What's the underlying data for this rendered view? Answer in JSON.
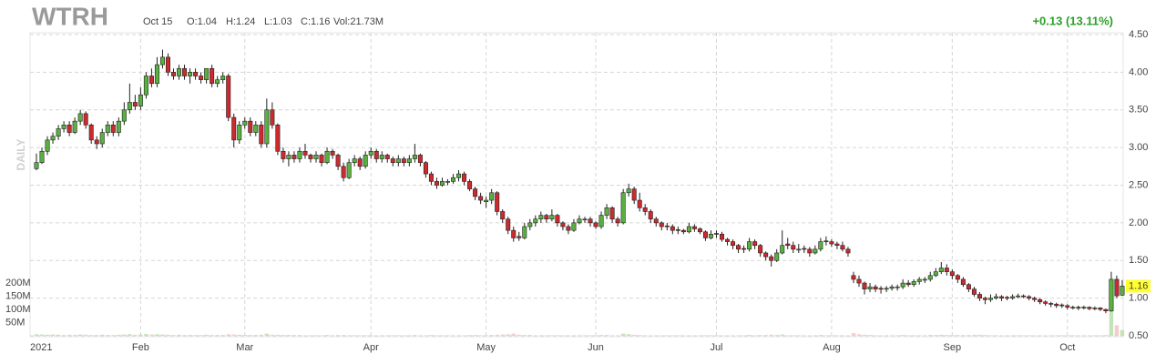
{
  "chart_data": {
    "type": "candlestick",
    "header": {
      "ticker": "WTRH",
      "date": "Oct 15",
      "open": "O:1.04",
      "high": "H:1.24",
      "low": "L:1.03",
      "close": "C:1.16",
      "volume": "Vol:21.73M",
      "change": "+0.13 (13.11%)",
      "period": "DAILY"
    },
    "up_color": "#59b13f",
    "down_color": "#cc2a2e",
    "volume_up_color": "#c3e3b8",
    "volume_down_color": "#f5cccc",
    "grid": true,
    "ylim": [
      0.5,
      4.5
    ],
    "yticks": [
      {
        "value": 0.5,
        "label": "0.50"
      },
      {
        "value": 1,
        "label": "1.00"
      },
      {
        "value": 1.5,
        "label": "1.50"
      },
      {
        "value": 2,
        "label": "2.00"
      },
      {
        "value": 2.5,
        "label": "2.50"
      },
      {
        "value": 3,
        "label": "3.00"
      },
      {
        "value": 3.5,
        "label": "3.50"
      },
      {
        "value": 4,
        "label": "4.00"
      },
      {
        "value": 4.5,
        "label": "4.50"
      }
    ],
    "price_tag": {
      "value": 1.16,
      "label": "1.16"
    },
    "vlim": [
      0,
      200
    ],
    "vticks": [
      {
        "value": 50,
        "label": "50M"
      },
      {
        "value": 100,
        "label": "100M"
      },
      {
        "value": 150,
        "label": "150M"
      },
      {
        "value": 200,
        "label": "200M"
      }
    ],
    "months": [
      {
        "index": 0,
        "label": "2021"
      },
      {
        "index": 19,
        "label": "Feb"
      },
      {
        "index": 38,
        "label": "Mar"
      },
      {
        "index": 61,
        "label": "Apr"
      },
      {
        "index": 82,
        "label": "May"
      },
      {
        "index": 102,
        "label": "Jun"
      },
      {
        "index": 124,
        "label": "Jul"
      },
      {
        "index": 145,
        "label": "Aug"
      },
      {
        "index": 167,
        "label": "Sep"
      },
      {
        "index": 188,
        "label": "Oct"
      }
    ],
    "ohlc": [
      [
        2.72,
        2.92,
        2.7,
        2.8
      ],
      [
        2.8,
        3.0,
        2.78,
        2.95
      ],
      [
        2.95,
        3.15,
        2.9,
        3.1
      ],
      [
        3.1,
        3.2,
        3.05,
        3.15
      ],
      [
        3.15,
        3.3,
        3.1,
        3.25
      ],
      [
        3.25,
        3.35,
        3.2,
        3.3
      ],
      [
        3.3,
        3.35,
        3.15,
        3.2
      ],
      [
        3.2,
        3.4,
        3.18,
        3.35
      ],
      [
        3.35,
        3.5,
        3.3,
        3.45
      ],
      [
        3.45,
        3.48,
        3.25,
        3.3
      ],
      [
        3.3,
        3.32,
        3.05,
        3.1
      ],
      [
        3.1,
        3.15,
        2.98,
        3.05
      ],
      [
        3.05,
        3.25,
        3.0,
        3.2
      ],
      [
        3.2,
        3.35,
        3.15,
        3.3
      ],
      [
        3.3,
        3.35,
        3.15,
        3.2
      ],
      [
        3.2,
        3.4,
        3.15,
        3.35
      ],
      [
        3.35,
        3.6,
        3.3,
        3.5
      ],
      [
        3.5,
        3.85,
        3.45,
        3.6
      ],
      [
        3.6,
        3.7,
        3.5,
        3.55
      ],
      [
        3.55,
        3.8,
        3.5,
        3.7
      ],
      [
        3.7,
        4.0,
        3.65,
        3.95
      ],
      [
        3.95,
        4.05,
        3.8,
        3.85
      ],
      [
        3.85,
        4.2,
        3.8,
        4.1
      ],
      [
        4.1,
        4.3,
        4.05,
        4.2
      ],
      [
        4.2,
        4.25,
        3.95,
        4.0
      ],
      [
        4.0,
        4.05,
        3.9,
        3.95
      ],
      [
        3.95,
        4.1,
        3.9,
        4.05
      ],
      [
        4.05,
        4.1,
        3.9,
        3.95
      ],
      [
        3.95,
        4.05,
        3.85,
        4.0
      ],
      [
        4.0,
        4.05,
        3.9,
        3.95
      ],
      [
        3.95,
        4.0,
        3.85,
        3.9
      ],
      [
        3.9,
        4.05,
        3.85,
        4.05
      ],
      [
        4.05,
        4.1,
        3.8,
        3.85
      ],
      [
        3.85,
        3.95,
        3.8,
        3.9
      ],
      [
        3.9,
        4.0,
        3.85,
        3.95
      ],
      [
        3.95,
        3.98,
        3.35,
        3.4
      ],
      [
        3.4,
        3.45,
        3.0,
        3.1
      ],
      [
        3.1,
        3.35,
        3.05,
        3.3
      ],
      [
        3.3,
        3.4,
        3.25,
        3.35
      ],
      [
        3.35,
        3.4,
        3.15,
        3.2
      ],
      [
        3.2,
        3.35,
        3.15,
        3.3
      ],
      [
        3.3,
        3.35,
        3.0,
        3.05
      ],
      [
        3.05,
        3.65,
        3.0,
        3.5
      ],
      [
        3.5,
        3.6,
        3.25,
        3.3
      ],
      [
        3.3,
        3.32,
        2.9,
        2.95
      ],
      [
        2.95,
        3.0,
        2.8,
        2.85
      ],
      [
        2.85,
        2.95,
        2.75,
        2.9
      ],
      [
        2.9,
        2.95,
        2.8,
        2.85
      ],
      [
        2.85,
        3.0,
        2.8,
        2.95
      ],
      [
        2.95,
        3.05,
        2.85,
        2.9
      ],
      [
        2.9,
        2.92,
        2.8,
        2.85
      ],
      [
        2.85,
        2.95,
        2.8,
        2.9
      ],
      [
        2.9,
        2.92,
        2.75,
        2.8
      ],
      [
        2.8,
        3.0,
        2.78,
        2.95
      ],
      [
        2.95,
        2.98,
        2.85,
        2.9
      ],
      [
        2.9,
        2.92,
        2.7,
        2.75
      ],
      [
        2.75,
        2.8,
        2.55,
        2.6
      ],
      [
        2.6,
        2.85,
        2.58,
        2.8
      ],
      [
        2.8,
        2.9,
        2.75,
        2.85
      ],
      [
        2.85,
        2.88,
        2.7,
        2.75
      ],
      [
        2.75,
        2.95,
        2.72,
        2.9
      ],
      [
        2.9,
        3.0,
        2.85,
        2.95
      ],
      [
        2.95,
        2.98,
        2.8,
        2.85
      ],
      [
        2.85,
        2.95,
        2.8,
        2.9
      ],
      [
        2.9,
        2.92,
        2.8,
        2.85
      ],
      [
        2.85,
        2.88,
        2.75,
        2.8
      ],
      [
        2.8,
        2.9,
        2.75,
        2.85
      ],
      [
        2.85,
        2.88,
        2.75,
        2.8
      ],
      [
        2.8,
        2.9,
        2.75,
        2.85
      ],
      [
        2.85,
        3.05,
        2.8,
        2.9
      ],
      [
        2.9,
        2.92,
        2.75,
        2.8
      ],
      [
        2.8,
        2.82,
        2.6,
        2.65
      ],
      [
        2.65,
        2.68,
        2.5,
        2.55
      ],
      [
        2.55,
        2.6,
        2.45,
        2.5
      ],
      [
        2.5,
        2.6,
        2.48,
        2.55
      ],
      [
        2.55,
        2.58,
        2.5,
        2.55
      ],
      [
        2.55,
        2.65,
        2.52,
        2.6
      ],
      [
        2.6,
        2.7,
        2.55,
        2.65
      ],
      [
        2.65,
        2.68,
        2.5,
        2.55
      ],
      [
        2.55,
        2.58,
        2.42,
        2.45
      ],
      [
        2.45,
        2.48,
        2.3,
        2.35
      ],
      [
        2.35,
        2.4,
        2.25,
        2.3
      ],
      [
        2.28,
        2.35,
        2.2,
        2.3
      ],
      [
        2.3,
        2.45,
        2.25,
        2.4
      ],
      [
        2.4,
        2.42,
        2.1,
        2.15
      ],
      [
        2.15,
        2.18,
        2.0,
        2.05
      ],
      [
        2.05,
        2.08,
        1.85,
        1.9
      ],
      [
        1.9,
        1.95,
        1.75,
        1.8
      ],
      [
        1.82,
        1.88,
        1.76,
        1.8
      ],
      [
        1.8,
        2.0,
        1.78,
        1.95
      ],
      [
        1.95,
        2.05,
        1.9,
        2.0
      ],
      [
        2.0,
        2.1,
        1.95,
        2.05
      ],
      [
        2.05,
        2.15,
        2.0,
        2.1
      ],
      [
        2.1,
        2.12,
        2.0,
        2.05
      ],
      [
        2.05,
        2.18,
        2.02,
        2.1
      ],
      [
        2.1,
        2.12,
        1.95,
        2.0
      ],
      [
        2.0,
        2.02,
        1.9,
        1.95
      ],
      [
        1.95,
        1.98,
        1.85,
        1.9
      ],
      [
        1.9,
        2.05,
        1.88,
        2.0
      ],
      [
        2.0,
        2.1,
        1.98,
        2.05
      ],
      [
        2.04,
        2.08,
        2.0,
        2.05
      ],
      [
        2.05,
        2.08,
        1.95,
        2.0
      ],
      [
        2.0,
        2.02,
        1.92,
        1.95
      ],
      [
        1.95,
        2.15,
        1.92,
        2.1
      ],
      [
        2.1,
        2.25,
        2.05,
        2.2
      ],
      [
        2.2,
        2.22,
        2.0,
        2.05
      ],
      [
        2.05,
        2.08,
        1.95,
        2.0
      ],
      [
        2.0,
        2.45,
        1.98,
        2.4
      ],
      [
        2.4,
        2.52,
        2.35,
        2.45
      ],
      [
        2.45,
        2.48,
        2.25,
        2.3
      ],
      [
        2.3,
        2.4,
        2.15,
        2.2
      ],
      [
        2.2,
        2.25,
        2.1,
        2.15
      ],
      [
        2.15,
        2.18,
        2.0,
        2.05
      ],
      [
        2.05,
        2.08,
        1.95,
        2.0
      ],
      [
        2.0,
        2.02,
        1.9,
        1.95
      ],
      [
        1.96,
        2.0,
        1.9,
        1.95
      ],
      [
        1.95,
        1.98,
        1.85,
        1.9
      ],
      [
        1.91,
        1.95,
        1.85,
        1.9
      ],
      [
        1.9,
        1.92,
        1.85,
        1.88
      ],
      [
        1.88,
        2.0,
        1.86,
        1.95
      ],
      [
        1.95,
        1.98,
        1.88,
        1.92
      ],
      [
        1.92,
        1.94,
        1.85,
        1.88
      ],
      [
        1.88,
        1.9,
        1.76,
        1.8
      ],
      [
        1.8,
        1.9,
        1.78,
        1.85
      ],
      [
        1.86,
        1.9,
        1.8,
        1.85
      ],
      [
        1.85,
        1.88,
        1.75,
        1.78
      ],
      [
        1.78,
        1.8,
        1.7,
        1.75
      ],
      [
        1.75,
        1.78,
        1.65,
        1.7
      ],
      [
        1.7,
        1.72,
        1.6,
        1.65
      ],
      [
        1.66,
        1.7,
        1.6,
        1.65
      ],
      [
        1.65,
        1.8,
        1.62,
        1.75
      ],
      [
        1.75,
        1.78,
        1.65,
        1.7
      ],
      [
        1.7,
        1.72,
        1.55,
        1.6
      ],
      [
        1.6,
        1.62,
        1.5,
        1.55
      ],
      [
        1.55,
        1.58,
        1.42,
        1.5
      ],
      [
        1.5,
        1.65,
        1.48,
        1.6
      ],
      [
        1.6,
        1.9,
        1.58,
        1.7
      ],
      [
        1.72,
        1.8,
        1.65,
        1.7
      ],
      [
        1.7,
        1.75,
        1.6,
        1.65
      ],
      [
        1.64,
        1.72,
        1.6,
        1.65
      ],
      [
        1.66,
        1.7,
        1.6,
        1.65
      ],
      [
        1.65,
        1.68,
        1.55,
        1.6
      ],
      [
        1.6,
        1.7,
        1.58,
        1.65
      ],
      [
        1.65,
        1.8,
        1.62,
        1.75
      ],
      [
        1.76,
        1.82,
        1.7,
        1.75
      ],
      [
        1.75,
        1.78,
        1.68,
        1.72
      ],
      [
        1.72,
        1.75,
        1.65,
        1.7
      ],
      [
        1.7,
        1.75,
        1.62,
        1.65
      ],
      [
        1.65,
        1.68,
        1.55,
        1.6
      ],
      [
        1.3,
        1.35,
        1.2,
        1.25
      ],
      [
        1.25,
        1.3,
        1.15,
        1.2
      ],
      [
        1.2,
        1.22,
        1.05,
        1.12
      ],
      [
        1.12,
        1.2,
        1.08,
        1.15
      ],
      [
        1.15,
        1.18,
        1.08,
        1.12
      ],
      [
        1.13,
        1.16,
        1.06,
        1.12
      ],
      [
        1.12,
        1.16,
        1.08,
        1.13
      ],
      [
        1.13,
        1.18,
        1.1,
        1.15
      ],
      [
        1.14,
        1.18,
        1.1,
        1.15
      ],
      [
        1.15,
        1.25,
        1.12,
        1.2
      ],
      [
        1.2,
        1.24,
        1.15,
        1.18
      ],
      [
        1.18,
        1.25,
        1.15,
        1.22
      ],
      [
        1.22,
        1.28,
        1.18,
        1.25
      ],
      [
        1.24,
        1.28,
        1.2,
        1.25
      ],
      [
        1.25,
        1.35,
        1.22,
        1.3
      ],
      [
        1.3,
        1.4,
        1.28,
        1.35
      ],
      [
        1.35,
        1.48,
        1.32,
        1.4
      ],
      [
        1.4,
        1.45,
        1.3,
        1.35
      ],
      [
        1.35,
        1.38,
        1.25,
        1.3
      ],
      [
        1.3,
        1.32,
        1.2,
        1.25
      ],
      [
        1.25,
        1.28,
        1.15,
        1.18
      ],
      [
        1.18,
        1.2,
        1.08,
        1.12
      ],
      [
        1.12,
        1.15,
        1.02,
        1.05
      ],
      [
        1.05,
        1.08,
        0.96,
        1.0
      ],
      [
        1.0,
        1.02,
        0.92,
        0.98
      ],
      [
        0.98,
        1.05,
        0.95,
        1.0
      ],
      [
        1.0,
        1.06,
        0.98,
        1.02
      ],
      [
        1.02,
        1.04,
        0.96,
        1.0
      ],
      [
        1.01,
        1.03,
        0.97,
        1.0
      ],
      [
        1.0,
        1.05,
        0.98,
        1.02
      ],
      [
        1.02,
        1.06,
        1.0,
        1.03
      ],
      [
        1.03,
        1.05,
        1.0,
        1.02
      ],
      [
        1.02,
        1.04,
        0.97,
        1.0
      ],
      [
        1.0,
        1.02,
        0.95,
        0.98
      ],
      [
        0.98,
        1.0,
        0.92,
        0.95
      ],
      [
        0.95,
        0.97,
        0.9,
        0.93
      ],
      [
        0.93,
        0.95,
        0.88,
        0.92
      ],
      [
        0.92,
        0.94,
        0.87,
        0.9
      ],
      [
        0.91,
        0.93,
        0.87,
        0.9
      ],
      [
        0.9,
        0.92,
        0.85,
        0.88
      ],
      [
        0.87,
        0.9,
        0.85,
        0.88
      ],
      [
        0.88,
        0.9,
        0.84,
        0.87
      ],
      [
        0.87,
        0.9,
        0.85,
        0.88
      ],
      [
        0.88,
        0.89,
        0.84,
        0.86
      ],
      [
        0.86,
        0.89,
        0.84,
        0.87
      ],
      [
        0.87,
        0.88,
        0.83,
        0.85
      ],
      [
        0.85,
        0.86,
        0.8,
        0.83
      ],
      [
        0.83,
        1.35,
        0.82,
        1.25
      ],
      [
        1.25,
        1.3,
        1.0,
        1.03
      ],
      [
        1.04,
        1.24,
        1.03,
        1.16
      ]
    ],
    "volume": [
      6,
      5,
      4,
      5,
      4,
      3,
      4,
      3,
      5,
      4,
      3,
      3,
      4,
      3,
      3,
      4,
      5,
      6,
      4,
      5,
      7,
      5,
      6,
      5,
      4,
      3,
      4,
      3,
      3,
      3,
      3,
      4,
      3,
      3,
      3,
      6,
      5,
      4,
      3,
      3,
      3,
      4,
      8,
      4,
      4,
      3,
      3,
      3,
      3,
      2,
      2,
      2,
      2,
      3,
      2,
      3,
      3,
      2,
      2,
      2,
      2,
      2,
      2,
      2,
      2,
      2,
      2,
      2,
      2,
      3,
      2,
      2,
      3,
      2,
      2,
      2,
      2,
      2,
      2,
      3,
      3,
      2,
      2,
      3,
      4,
      5,
      6,
      8,
      4,
      3,
      3,
      2,
      2,
      2,
      2,
      2,
      2,
      2,
      2,
      2,
      2,
      2,
      2,
      3,
      3,
      2,
      2,
      8,
      6,
      4,
      3,
      2,
      2,
      2,
      2,
      2,
      2,
      2,
      2,
      2,
      2,
      2,
      2,
      2,
      2,
      2,
      2,
      2,
      2,
      2,
      3,
      2,
      3,
      3,
      4,
      3,
      5,
      2,
      2,
      2,
      2,
      2,
      2,
      3,
      2,
      2,
      2,
      2,
      2,
      10,
      6,
      4,
      3,
      2,
      2,
      2,
      2,
      2,
      3,
      2,
      2,
      2,
      2,
      3,
      3,
      4,
      3,
      3,
      3,
      3,
      3,
      4,
      4,
      3,
      2,
      2,
      2,
      2,
      2,
      2,
      2,
      2,
      2,
      2,
      2,
      2,
      2,
      2,
      2,
      2,
      2,
      2,
      2,
      2,
      2,
      3,
      150,
      40,
      21.73
    ]
  }
}
